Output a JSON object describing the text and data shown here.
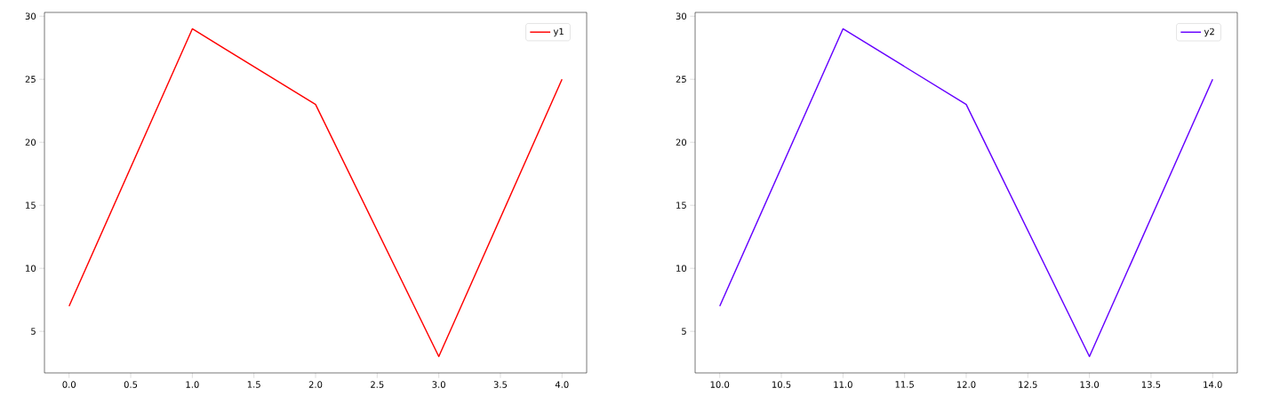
{
  "chart_data": [
    {
      "type": "line",
      "x": [
        0,
        1,
        2,
        3,
        4
      ],
      "series": [
        {
          "name": "y1",
          "color": "#ff0000",
          "values": [
            7,
            29,
            23,
            3,
            25
          ]
        }
      ],
      "xlim": [
        -0.2,
        4.2
      ],
      "ylim": [
        1.7,
        30.3
      ],
      "xticks": [
        {
          "value": 0,
          "label": "0.0"
        },
        {
          "value": 0.5,
          "label": "0.5"
        },
        {
          "value": 1,
          "label": "1.0"
        },
        {
          "value": 1.5,
          "label": "1.5"
        },
        {
          "value": 2,
          "label": "2.0"
        },
        {
          "value": 2.5,
          "label": "2.5"
        },
        {
          "value": 3,
          "label": "3.0"
        },
        {
          "value": 3.5,
          "label": "3.5"
        },
        {
          "value": 4,
          "label": "4.0"
        }
      ],
      "yticks": [
        5,
        10,
        15,
        20,
        25,
        30
      ],
      "legend": "top right"
    },
    {
      "type": "line",
      "x": [
        10,
        11,
        12,
        13,
        14
      ],
      "series": [
        {
          "name": "y2",
          "color": "#6600ff",
          "values": [
            7,
            29,
            23,
            3,
            25
          ]
        }
      ],
      "xlim": [
        9.8,
        14.2
      ],
      "ylim": [
        1.7,
        30.3
      ],
      "xticks": [
        {
          "value": 10,
          "label": "10.0"
        },
        {
          "value": 10.5,
          "label": "10.5"
        },
        {
          "value": 11,
          "label": "11.0"
        },
        {
          "value": 11.5,
          "label": "11.5"
        },
        {
          "value": 12,
          "label": "12.0"
        },
        {
          "value": 12.5,
          "label": "12.5"
        },
        {
          "value": 13,
          "label": "13.0"
        },
        {
          "value": 13.5,
          "label": "13.5"
        },
        {
          "value": 14,
          "label": "14.0"
        }
      ],
      "yticks": [
        5,
        10,
        15,
        20,
        25,
        30
      ],
      "legend": "top right"
    }
  ]
}
